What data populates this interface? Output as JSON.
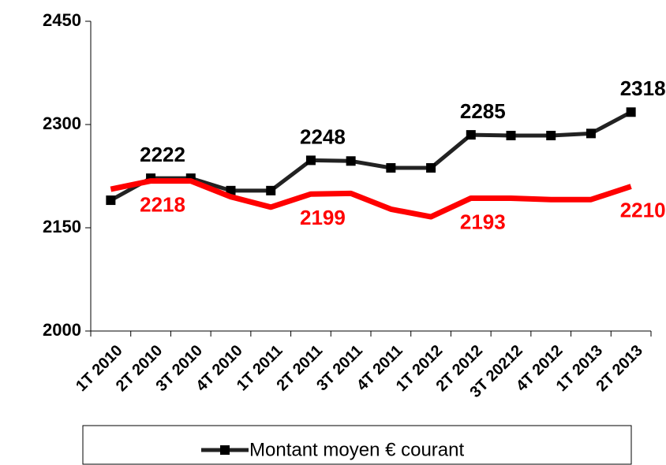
{
  "chart_data": {
    "type": "line",
    "categories": [
      "1T 2010",
      "2T 2010",
      "3T 2010",
      "4T 2010",
      "1T 2011",
      "2T 2011",
      "3T 2011",
      "4T 2011",
      "1T 2012",
      "2T 2012",
      "3T 20212",
      "4T 2012",
      "1T 2013",
      "2T 2013"
    ],
    "series": [
      {
        "name": "Montant moyen € courant",
        "color": "#222222",
        "values": [
          2190,
          2222,
          2222,
          2204,
          2204,
          2248,
          2247,
          2237,
          2237,
          2285,
          2284,
          2284,
          2287,
          2318
        ],
        "value_labels": [
          null,
          "2222",
          null,
          null,
          null,
          "2248",
          null,
          null,
          null,
          "2285",
          null,
          null,
          null,
          "2318"
        ]
      },
      {
        "color": "#ff0000",
        "values": [
          2206,
          2218,
          2218,
          2195,
          2180,
          2199,
          2200,
          2177,
          2166,
          2193,
          2193,
          2191,
          2191,
          2210
        ],
        "value_labels": [
          null,
          "2218",
          null,
          null,
          null,
          "2199",
          null,
          null,
          null,
          "2193",
          null,
          null,
          null,
          "2210"
        ]
      }
    ],
    "ylim": [
      2000,
      2450
    ],
    "yticks": [
      2000,
      2150,
      2300,
      2450
    ]
  }
}
